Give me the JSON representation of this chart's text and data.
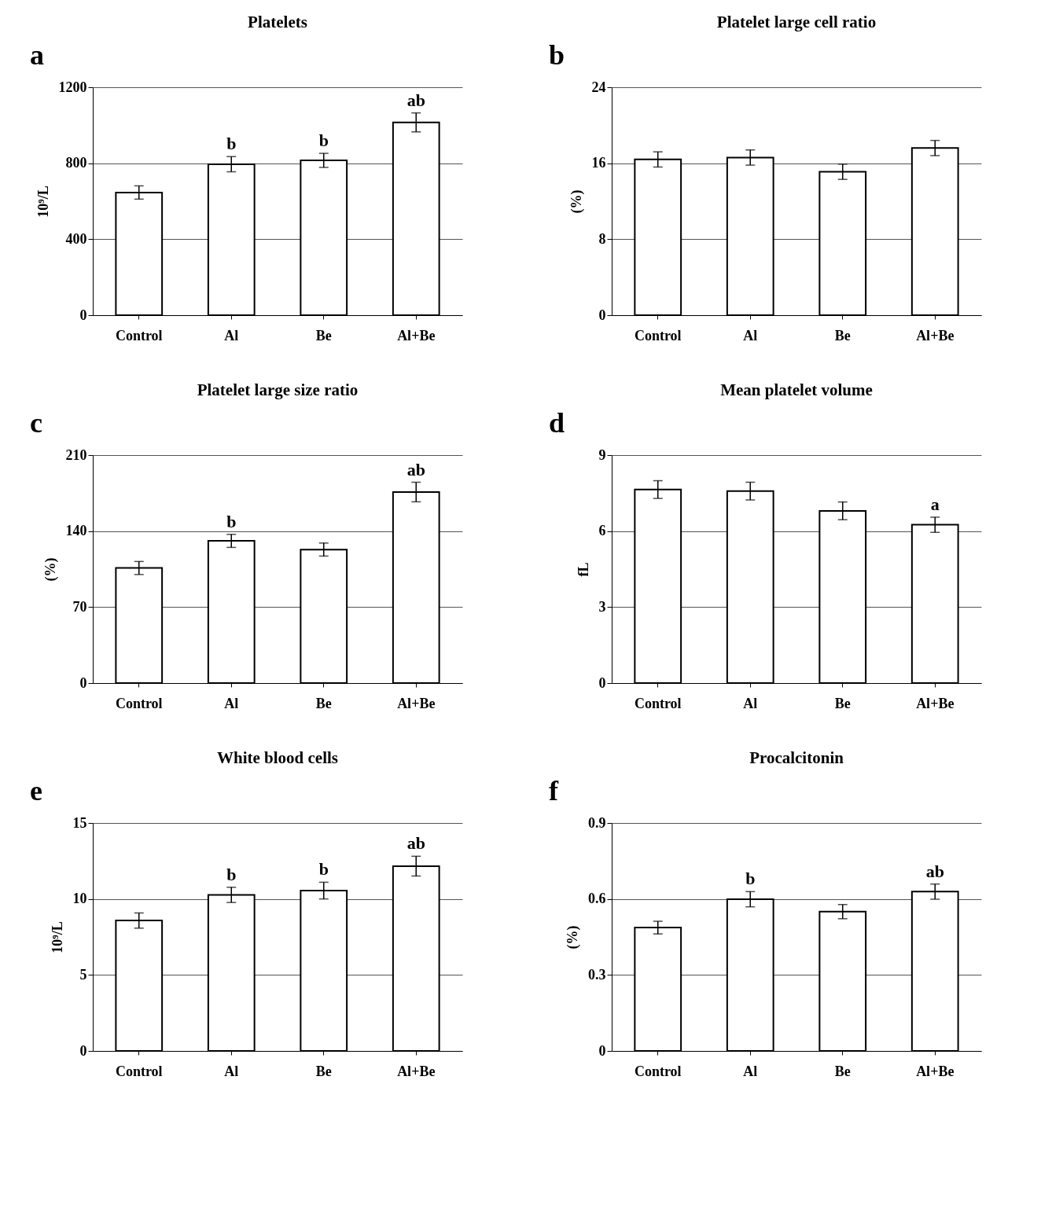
{
  "chart_data": [
    {
      "type": "bar",
      "title": "Platelets",
      "ylabel": "10⁹/L",
      "categories": [
        "Control",
        "Al",
        "Be",
        "Al+Be"
      ],
      "values": [
        646,
        795,
        815,
        1015
      ],
      "errors": [
        35,
        40,
        37,
        50
      ],
      "colors": [
        "#ffffff",
        "#ffffff",
        "#ffffff",
        "#ffffff"
      ],
      "ylim": [
        0,
        1200
      ],
      "yticks": [
        0,
        400,
        800,
        1200
      ],
      "grid": "y",
      "annotations": [
        "a",
        {
          "text": "b",
          "x": "Al",
          "y": 795
        },
        {
          "text": "b",
          "x": "Be",
          "y": 815
        },
        {
          "text": "ab",
          "x": "Al+Be",
          "y": 1015
        }
      ]
    },
    {
      "type": "bar",
      "title": "Platelet large cell ratio",
      "ylabel": "(%)",
      "categories": [
        "Control",
        "Al",
        "Be",
        "Al+Be"
      ],
      "values": [
        16.4,
        16.6,
        15.1,
        17.6
      ],
      "errors": [
        0.8,
        0.8,
        0.8,
        0.8
      ],
      "colors": [
        "#ffffff",
        "#ffffff",
        "#ffffff",
        "#ffffff"
      ],
      "ylim": [
        0,
        24
      ],
      "yticks": [
        0,
        8,
        16,
        24
      ],
      "grid": "y",
      "annotations": [
        "b"
      ]
    },
    {
      "type": "bar",
      "title": "Platelet large size ratio",
      "ylabel": "(%)",
      "categories": [
        "Control",
        "Al",
        "Be",
        "Al+Be"
      ],
      "values": [
        106,
        131,
        123,
        176
      ],
      "errors": [
        6,
        6,
        6,
        9
      ],
      "colors": [
        "#ffffff",
        "#ffffff",
        "#ffffff",
        "#ffffff"
      ],
      "ylim": [
        0,
        210
      ],
      "yticks": [
        0,
        70,
        140,
        210
      ],
      "grid": "y",
      "annotations": [
        "c",
        {
          "text": "b",
          "x": "Al",
          "y": 131
        },
        {
          "text": "ab",
          "x": "Al+Be",
          "y": 176
        }
      ]
    },
    {
      "type": "bar",
      "title": "Mean platelet volume",
      "ylabel": "fL",
      "categories": [
        "Control",
        "Al",
        "Be",
        "Al+Be"
      ],
      "values": [
        7.64,
        7.58,
        6.8,
        6.25
      ],
      "errors": [
        0.35,
        0.35,
        0.35,
        0.3
      ],
      "colors": [
        "#ffffff",
        "#ffffff",
        "#ffffff",
        "#ffffff"
      ],
      "ylim": [
        0,
        9
      ],
      "yticks": [
        0,
        3,
        6,
        9
      ],
      "grid": "y",
      "annotations": [
        "d",
        {
          "text": "a",
          "x": "Al+Be",
          "y": 6.25
        }
      ]
    },
    {
      "type": "bar",
      "title": "White blood cells",
      "ylabel": "10⁹/L",
      "categories": [
        "Control",
        "Al",
        "Be",
        "Al+Be"
      ],
      "values": [
        8.58,
        10.27,
        10.55,
        12.16
      ],
      "errors": [
        0.5,
        0.5,
        0.55,
        0.65
      ],
      "colors": [
        "#ffffff",
        "#ffffff",
        "#ffffff",
        "#ffffff"
      ],
      "ylim": [
        0,
        15
      ],
      "yticks": [
        0,
        5,
        10,
        15
      ],
      "grid": "y",
      "annotations": [
        "e",
        {
          "text": "b",
          "x": "Al",
          "y": 10.27
        },
        {
          "text": "b",
          "x": "Be",
          "y": 10.55
        },
        {
          "text": "ab",
          "x": "Al+Be",
          "y": 12.16
        }
      ]
    },
    {
      "type": "bar",
      "title": "Procalcitonin",
      "ylabel": "(%)",
      "categories": [
        "Control",
        "Al",
        "Be",
        "Al+Be"
      ],
      "values": [
        0.487,
        0.599,
        0.55,
        0.629
      ],
      "errors": [
        0.025,
        0.03,
        0.028,
        0.03
      ],
      "colors": [
        "#ffffff",
        "#ffffff",
        "#ffffff",
        "#ffffff"
      ],
      "ylim": [
        0,
        0.9
      ],
      "yticks": [
        0,
        0.3,
        0.6,
        0.9
      ],
      "grid": "y",
      "annotations": [
        "f",
        {
          "text": "b",
          "x": "Al",
          "y": 0.599
        },
        {
          "text": "ab",
          "x": "Al+Be",
          "y": 0.629
        }
      ]
    }
  ]
}
